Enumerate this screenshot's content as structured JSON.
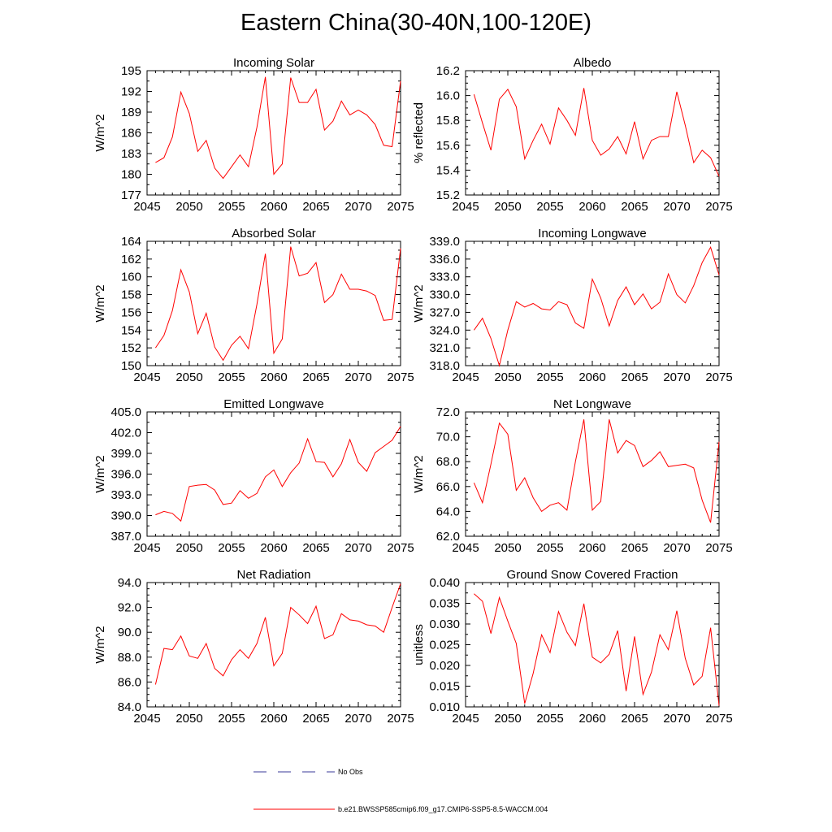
{
  "title": "Eastern China(30-40N,100-120E)",
  "colors": {
    "model": "#ff0000",
    "obs": "#3a3a9a",
    "axis": "#000000"
  },
  "legend": {
    "obs_label": "No Obs",
    "model_label": "b.e21.BWSSP585cmip6.f09_g17.CMIP6-SSP5-8.5-WACCM.004"
  },
  "chart_data": [
    {
      "type": "line",
      "title": "Incoming Solar",
      "xlabel": "",
      "ylabel": "W/m^2",
      "xlim": [
        2045,
        2075
      ],
      "ylim": [
        177,
        195
      ],
      "xticks": [
        "2045",
        "2050",
        "2055",
        "2060",
        "2065",
        "2070",
        "2075"
      ],
      "yticks": [
        "177",
        "180",
        "183",
        "186",
        "189",
        "192",
        "195"
      ],
      "x": [
        2046,
        2047,
        2048,
        2049,
        2050,
        2051,
        2052,
        2053,
        2054,
        2055,
        2056,
        2057,
        2058,
        2059,
        2060,
        2061,
        2062,
        2063,
        2064,
        2065,
        2066,
        2067,
        2068,
        2069,
        2070,
        2071,
        2072,
        2073,
        2074,
        2075
      ],
      "series": [
        {
          "name": "b.e21.BWSSP585cmip6.f09_g17.CMIP6-SSP5-8.5-WACCM.004",
          "values": [
            181.7,
            182.4,
            185.4,
            191.9,
            188.8,
            183.3,
            184.9,
            180.9,
            179.4,
            181.1,
            182.8,
            181.1,
            186.8,
            194.1,
            180.0,
            181.5,
            194.0,
            190.4,
            190.4,
            192.3,
            186.4,
            187.7,
            190.6,
            188.6,
            189.3,
            188.6,
            187.2,
            184.2,
            184.0,
            193.5
          ]
        }
      ]
    },
    {
      "type": "line",
      "title": "Albedo",
      "xlabel": "",
      "ylabel": "% reflected",
      "xlim": [
        2045,
        2075
      ],
      "ylim": [
        15.2,
        16.2
      ],
      "xticks": [
        "2045",
        "2050",
        "2055",
        "2060",
        "2065",
        "2070",
        "2075"
      ],
      "yticks": [
        "15.2",
        "15.4",
        "15.6",
        "15.8",
        "16.0",
        "16.2"
      ],
      "x": [
        2046,
        2047,
        2048,
        2049,
        2050,
        2051,
        2052,
        2053,
        2054,
        2055,
        2056,
        2057,
        2058,
        2059,
        2060,
        2061,
        2062,
        2063,
        2064,
        2065,
        2066,
        2067,
        2068,
        2069,
        2070,
        2071,
        2072,
        2073,
        2074,
        2075
      ],
      "series": [
        {
          "name": "b.e21.BWSSP585cmip6.f09_g17.CMIP6-SSP5-8.5-WACCM.004",
          "values": [
            16.01,
            15.78,
            15.56,
            15.97,
            16.05,
            15.91,
            15.49,
            15.64,
            15.77,
            15.61,
            15.9,
            15.8,
            15.68,
            16.06,
            15.64,
            15.52,
            15.57,
            15.67,
            15.53,
            15.79,
            15.49,
            15.64,
            15.67,
            15.67,
            16.03,
            15.76,
            15.46,
            15.56,
            15.5,
            15.35
          ]
        }
      ]
    },
    {
      "type": "line",
      "title": "Absorbed Solar",
      "xlabel": "",
      "ylabel": "W/m^2",
      "xlim": [
        2045,
        2075
      ],
      "ylim": [
        150,
        164
      ],
      "xticks": [
        "2045",
        "2050",
        "2055",
        "2060",
        "2065",
        "2070",
        "2075"
      ],
      "yticks": [
        "150",
        "152",
        "154",
        "156",
        "158",
        "160",
        "162",
        "164"
      ],
      "x": [
        2046,
        2047,
        2048,
        2049,
        2050,
        2051,
        2052,
        2053,
        2054,
        2055,
        2056,
        2057,
        2058,
        2059,
        2060,
        2061,
        2062,
        2063,
        2064,
        2065,
        2066,
        2067,
        2068,
        2069,
        2070,
        2071,
        2072,
        2073,
        2074,
        2075
      ],
      "series": [
        {
          "name": "b.e21.BWSSP585cmip6.f09_g17.CMIP6-SSP5-8.5-WACCM.004",
          "values": [
            152.0,
            153.4,
            156.2,
            160.8,
            158.3,
            153.6,
            155.9,
            152.1,
            150.6,
            152.3,
            153.3,
            151.9,
            156.9,
            162.6,
            151.4,
            153.0,
            163.4,
            160.1,
            160.4,
            161.6,
            157.1,
            158.0,
            160.3,
            158.6,
            158.6,
            158.4,
            157.9,
            155.1,
            155.2,
            163.2
          ]
        }
      ]
    },
    {
      "type": "line",
      "title": "Incoming Longwave",
      "xlabel": "",
      "ylabel": "W/m^2",
      "xlim": [
        2045,
        2075
      ],
      "ylim": [
        318.0,
        339.0
      ],
      "xticks": [
        "2045",
        "2050",
        "2055",
        "2060",
        "2065",
        "2070",
        "2075"
      ],
      "yticks": [
        "318.0",
        "321.0",
        "324.0",
        "327.0",
        "330.0",
        "333.0",
        "336.0",
        "339.0"
      ],
      "x": [
        2046,
        2047,
        2048,
        2049,
        2050,
        2051,
        2052,
        2053,
        2054,
        2055,
        2056,
        2057,
        2058,
        2059,
        2060,
        2061,
        2062,
        2063,
        2064,
        2065,
        2066,
        2067,
        2068,
        2069,
        2070,
        2071,
        2072,
        2073,
        2074,
        2075
      ],
      "series": [
        {
          "name": "b.e21.BWSSP585cmip6.f09_g17.CMIP6-SSP5-8.5-WACCM.004",
          "values": [
            324.0,
            326.0,
            322.6,
            318.0,
            324.0,
            328.8,
            327.9,
            328.5,
            327.6,
            327.4,
            328.8,
            328.3,
            325.2,
            324.3,
            332.6,
            329.4,
            324.7,
            329.0,
            331.3,
            328.3,
            330.1,
            327.6,
            328.7,
            333.5,
            330.0,
            328.6,
            331.5,
            335.4,
            338.0,
            333.3
          ]
        }
      ]
    },
    {
      "type": "line",
      "title": "Emitted Longwave",
      "xlabel": "",
      "ylabel": "W/m^2",
      "xlim": [
        2045,
        2075
      ],
      "ylim": [
        387.0,
        405.0
      ],
      "xticks": [
        "2045",
        "2050",
        "2055",
        "2060",
        "2065",
        "2070",
        "2075"
      ],
      "yticks": [
        "387.0",
        "390.0",
        "393.0",
        "396.0",
        "399.0",
        "402.0",
        "405.0"
      ],
      "x": [
        2046,
        2047,
        2048,
        2049,
        2050,
        2051,
        2052,
        2053,
        2054,
        2055,
        2056,
        2057,
        2058,
        2059,
        2060,
        2061,
        2062,
        2063,
        2064,
        2065,
        2066,
        2067,
        2068,
        2069,
        2070,
        2071,
        2072,
        2073,
        2074,
        2075
      ],
      "series": [
        {
          "name": "b.e21.BWSSP585cmip6.f09_g17.CMIP6-SSP5-8.5-WACCM.004",
          "values": [
            390.1,
            390.6,
            390.3,
            389.2,
            394.2,
            394.4,
            394.5,
            393.7,
            391.6,
            391.8,
            393.6,
            392.5,
            393.2,
            395.6,
            396.6,
            394.2,
            396.2,
            397.6,
            401.1,
            397.8,
            397.7,
            395.6,
            397.5,
            401.0,
            397.7,
            396.4,
            399.1,
            400.0,
            400.9,
            402.9
          ]
        }
      ]
    },
    {
      "type": "line",
      "title": "Net Longwave",
      "xlabel": "",
      "ylabel": "W/m^2",
      "xlim": [
        2045,
        2075
      ],
      "ylim": [
        62.0,
        72.0
      ],
      "xticks": [
        "2045",
        "2050",
        "2055",
        "2060",
        "2065",
        "2070",
        "2075"
      ],
      "yticks": [
        "62.0",
        "64.0",
        "66.0",
        "68.0",
        "70.0",
        "72.0"
      ],
      "x": [
        2046,
        2047,
        2048,
        2049,
        2050,
        2051,
        2052,
        2053,
        2054,
        2055,
        2056,
        2057,
        2058,
        2059,
        2060,
        2061,
        2062,
        2063,
        2064,
        2065,
        2066,
        2067,
        2068,
        2069,
        2070,
        2071,
        2072,
        2073,
        2074,
        2075
      ],
      "series": [
        {
          "name": "b.e21.BWSSP585cmip6.f09_g17.CMIP6-SSP5-8.5-WACCM.004",
          "values": [
            66.3,
            64.7,
            67.8,
            71.1,
            70.2,
            65.7,
            66.7,
            65.1,
            64.0,
            64.5,
            64.7,
            64.1,
            68.0,
            71.4,
            64.1,
            64.8,
            71.4,
            68.7,
            69.7,
            69.3,
            67.6,
            68.1,
            68.8,
            67.6,
            67.7,
            67.8,
            67.5,
            64.9,
            63.1,
            69.6
          ]
        }
      ]
    },
    {
      "type": "line",
      "title": "Net Radiation",
      "xlabel": "",
      "ylabel": "W/m^2",
      "xlim": [
        2045,
        2075
      ],
      "ylim": [
        84.0,
        94.0
      ],
      "xticks": [
        "2045",
        "2050",
        "2055",
        "2060",
        "2065",
        "2070",
        "2075"
      ],
      "yticks": [
        "84.0",
        "86.0",
        "88.0",
        "90.0",
        "92.0",
        "94.0"
      ],
      "x": [
        2046,
        2047,
        2048,
        2049,
        2050,
        2051,
        2052,
        2053,
        2054,
        2055,
        2056,
        2057,
        2058,
        2059,
        2060,
        2061,
        2062,
        2063,
        2064,
        2065,
        2066,
        2067,
        2068,
        2069,
        2070,
        2071,
        2072,
        2073,
        2074,
        2075
      ],
      "series": [
        {
          "name": "b.e21.BWSSP585cmip6.f09_g17.CMIP6-SSP5-8.5-WACCM.004",
          "values": [
            85.8,
            88.7,
            88.6,
            89.7,
            88.1,
            87.9,
            89.1,
            87.1,
            86.5,
            87.8,
            88.6,
            87.9,
            89.1,
            91.2,
            87.3,
            88.3,
            92.0,
            91.4,
            90.7,
            92.1,
            89.5,
            89.8,
            91.5,
            91.0,
            90.9,
            90.6,
            90.5,
            90.0,
            92.0,
            93.9
          ]
        }
      ]
    },
    {
      "type": "line",
      "title": "Ground Snow Covered Fraction",
      "xlabel": "",
      "ylabel": "unitless",
      "xlim": [
        2045,
        2075
      ],
      "ylim": [
        0.01,
        0.04
      ],
      "xticks": [
        "2045",
        "2050",
        "2055",
        "2060",
        "2065",
        "2070",
        "2075"
      ],
      "yticks": [
        "0.010",
        "0.015",
        "0.020",
        "0.025",
        "0.030",
        "0.035",
        "0.040"
      ],
      "x": [
        2046,
        2047,
        2048,
        2049,
        2050,
        2051,
        2052,
        2053,
        2054,
        2055,
        2056,
        2057,
        2058,
        2059,
        2060,
        2061,
        2062,
        2063,
        2064,
        2065,
        2066,
        2067,
        2068,
        2069,
        2070,
        2071,
        2072,
        2073,
        2074,
        2075
      ],
      "series": [
        {
          "name": "b.e21.BWSSP585cmip6.f09_g17.CMIP6-SSP5-8.5-WACCM.004",
          "values": [
            0.0373,
            0.0355,
            0.0277,
            0.0364,
            0.0307,
            0.0253,
            0.0108,
            0.0181,
            0.0274,
            0.0231,
            0.033,
            0.028,
            0.0248,
            0.0349,
            0.022,
            0.0206,
            0.0227,
            0.0284,
            0.0138,
            0.027,
            0.013,
            0.0184,
            0.0274,
            0.0238,
            0.0332,
            0.0217,
            0.0153,
            0.0174,
            0.0291,
            0.0103
          ]
        }
      ]
    }
  ]
}
